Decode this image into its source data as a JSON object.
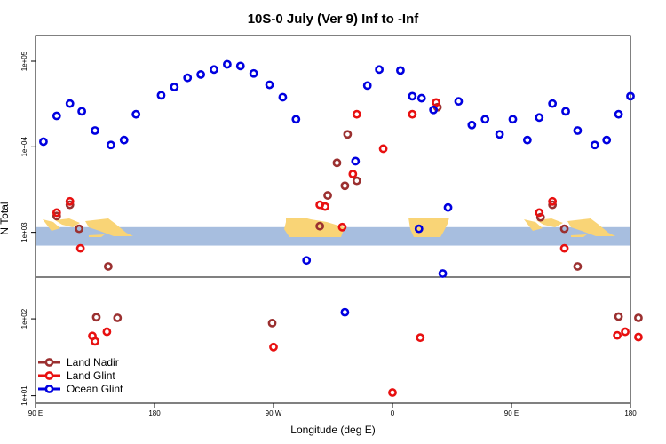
{
  "chart_data": {
    "type": "scatter",
    "title": "10S-0 July (Ver 9)   Inf to -Inf",
    "xlabel": "Longitude (deg E)",
    "ylabel": "N Total",
    "x_ticks": [
      "90 E",
      "180",
      "90 W",
      "0",
      "90 E",
      "180"
    ],
    "x_tick_values": [
      90,
      180,
      270,
      360,
      450,
      540
    ],
    "xlim": [
      90,
      540
    ],
    "upper_panel": {
      "scale": "log",
      "ylim": [
        300,
        200000
      ],
      "y_ticks": [
        "1e+03",
        "1e+04",
        "1e+05"
      ],
      "y_tick_values": [
        1000,
        10000,
        100000
      ],
      "band_range": [
        700,
        1150
      ]
    },
    "lower_panel": {
      "scale": "log",
      "ylim": [
        8,
        350
      ],
      "y_ticks": [
        "1e+01",
        "1e+02"
      ],
      "y_tick_values": [
        10,
        100
      ]
    },
    "series": [
      {
        "name": "Land Nadir",
        "color": "#9b3030",
        "upper": [
          [
            106,
            1550
          ],
          [
            116,
            2100
          ],
          [
            123,
            1100
          ],
          [
            145,
            400
          ],
          [
            305,
            1180
          ],
          [
            311,
            2700
          ],
          [
            318,
            6500
          ],
          [
            324,
            3500
          ],
          [
            326,
            14000
          ],
          [
            333,
            4000
          ],
          [
            394,
            29000
          ],
          [
            472,
            1500
          ],
          [
            481,
            2100
          ],
          [
            490,
            1100
          ],
          [
            500,
            400
          ]
        ],
        "lower": [
          [
            136,
            105
          ],
          [
            152,
            103
          ],
          [
            269,
            88
          ],
          [
            531,
            107
          ],
          [
            546,
            103
          ]
        ]
      },
      {
        "name": "Land Glint",
        "color": "#e81010",
        "upper": [
          [
            106,
            1700
          ],
          [
            116,
            2300
          ],
          [
            124,
            650
          ],
          [
            305,
            2100
          ],
          [
            309,
            2000
          ],
          [
            322,
            1150
          ],
          [
            330,
            4800
          ],
          [
            333,
            24000
          ],
          [
            353,
            9500
          ],
          [
            375,
            24000
          ],
          [
            393,
            33000
          ],
          [
            471,
            1700
          ],
          [
            481,
            2300
          ],
          [
            490,
            650
          ]
        ],
        "lower": [
          [
            133,
            60
          ],
          [
            144,
            68
          ],
          [
            135,
            51
          ],
          [
            270,
            43
          ],
          [
            360,
            11
          ],
          [
            381,
            57
          ],
          [
            530,
            61
          ],
          [
            536,
            68
          ],
          [
            546,
            58
          ]
        ]
      },
      {
        "name": "Ocean Glint",
        "color": "#0000e0",
        "upper": [
          [
            96,
            11500
          ],
          [
            106,
            23000
          ],
          [
            116,
            32000
          ],
          [
            125,
            26000
          ],
          [
            135,
            15500
          ],
          [
            147,
            10500
          ],
          [
            157,
            12000
          ],
          [
            166,
            24000
          ],
          [
            185,
            40000
          ],
          [
            195,
            50000
          ],
          [
            205,
            64000
          ],
          [
            215,
            70000
          ],
          [
            225,
            80000
          ],
          [
            235,
            92000
          ],
          [
            245,
            88000
          ],
          [
            255,
            72000
          ],
          [
            267,
            53000
          ],
          [
            277,
            38000
          ],
          [
            287,
            21000
          ],
          [
            295,
            470
          ],
          [
            332,
            6800
          ],
          [
            341,
            52000
          ],
          [
            350,
            80000
          ],
          [
            366,
            78000
          ],
          [
            375,
            39000
          ],
          [
            382,
            37000
          ],
          [
            380,
            1100
          ],
          [
            391,
            27000
          ],
          [
            398,
            330
          ],
          [
            402,
            1950
          ],
          [
            410,
            34000
          ],
          [
            420,
            18000
          ],
          [
            430,
            21000
          ],
          [
            441,
            14000
          ],
          [
            451,
            21000
          ],
          [
            462,
            12000
          ],
          [
            471,
            22000
          ],
          [
            481,
            32000
          ],
          [
            491,
            26000
          ],
          [
            500,
            15500
          ],
          [
            513,
            10500
          ],
          [
            522,
            12000
          ],
          [
            531,
            24000
          ],
          [
            540,
            39000
          ]
        ],
        "lower": [
          [
            324,
            122
          ]
        ]
      }
    ],
    "legend": [
      "Land Nadir",
      "Land Glint",
      "Ocean Glint"
    ],
    "legend_position": "bottom-left"
  }
}
